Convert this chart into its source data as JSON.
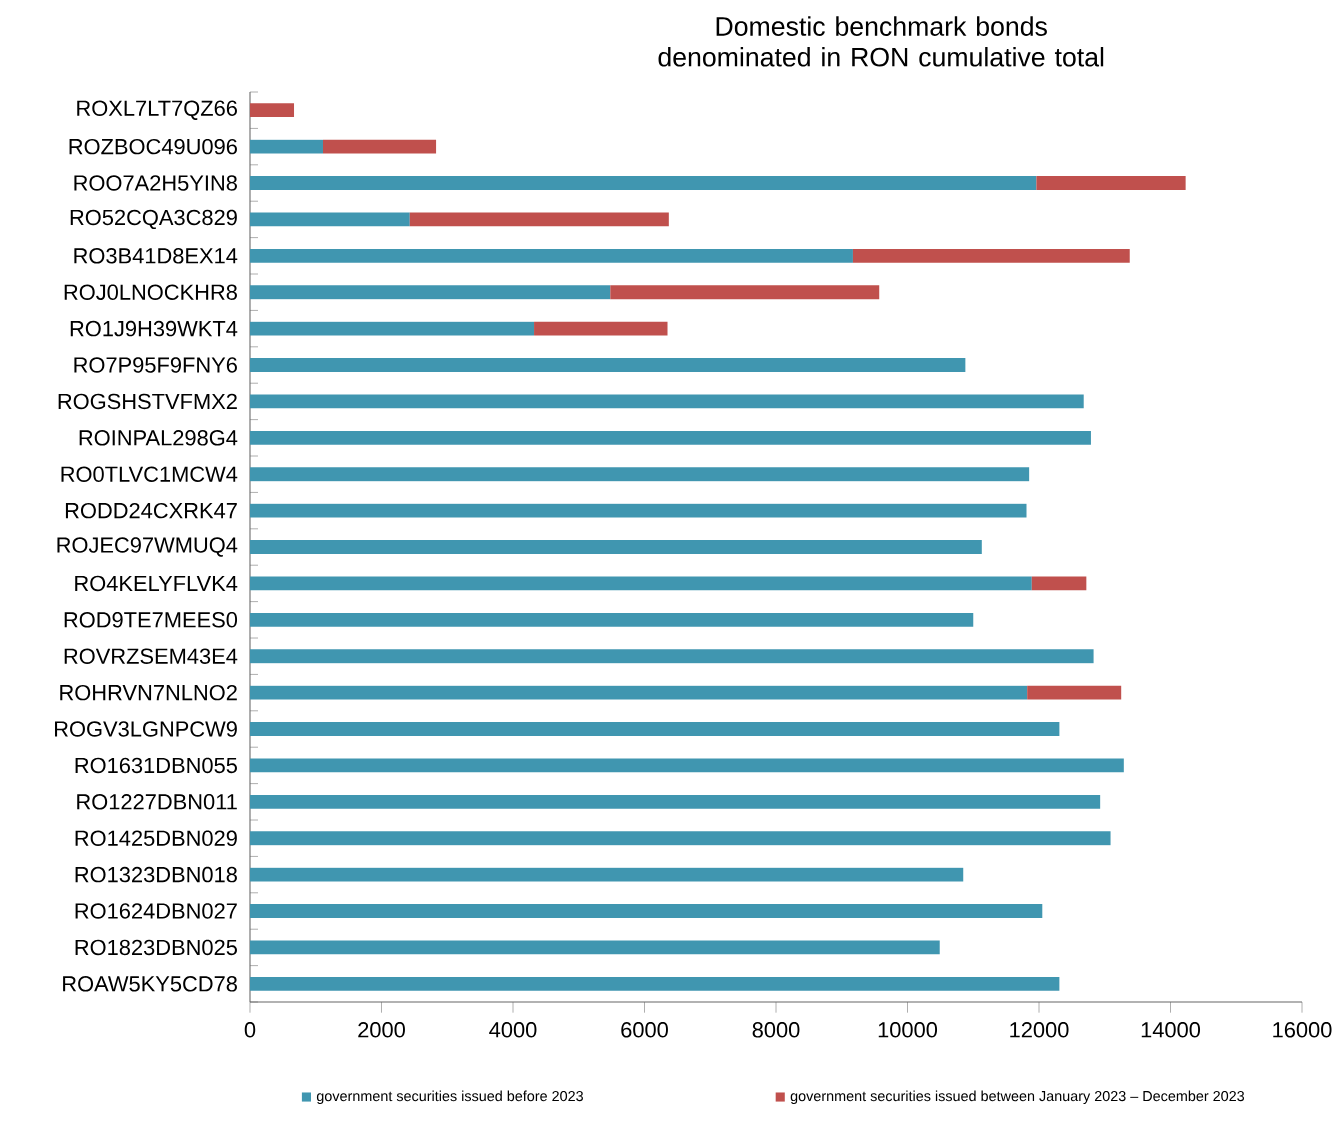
{
  "chart_data": {
    "type": "bar",
    "orientation": "horizontal",
    "stacked": true,
    "title": "Domestic benchmark bonds denominated in RON cumulative total",
    "categories": [
      "ROXL7LT7QZ66",
      "ROZBOC49U096",
      "ROO7A2H5YIN8",
      "RO52CQA3C829",
      "RO3B41D8EX14",
      "ROJ0LNOCKHR8",
      "RO1J9H39WKT4",
      "RO7P95F9FNY6",
      "ROGSHSTVFMX2",
      "ROINPAL298G4",
      "RO0TLVC1MCW4",
      "RODD24CXRK47",
      "ROJEC97WMUQ4",
      "RO4KELYFLVK4",
      "ROD9TE7MEES0",
      "ROVRZSEM43E4",
      "ROHRVN7NLNO2",
      "ROGV3LGNPCW9",
      "RO1631DBN055",
      "RO1227DBN011",
      "RO1425DBN029",
      "RO1323DBN018",
      "RO1624DBN027",
      "RO1823DBN025",
      "ROAW5KY5CD78"
    ],
    "series": [
      {
        "name": "government securities issued before 2023",
        "color": "#4096b0",
        "values": [
          null,
          1110,
          11960,
          2430,
          9170,
          5480,
          4320,
          10880,
          12680,
          12790,
          11850,
          11810,
          11130,
          11890,
          11000,
          12830,
          11820,
          12310,
          13290,
          12930,
          13090,
          10850,
          12050,
          10490,
          12310
        ]
      },
      {
        "name": "government securities issued between January 2023 – December 2023",
        "color": "#c0504d",
        "values": [
          670,
          1720,
          2270,
          3940,
          4210,
          4090,
          2030,
          null,
          null,
          null,
          null,
          null,
          null,
          830,
          null,
          null,
          1430,
          null,
          null,
          null,
          null,
          null,
          null,
          null,
          null
        ]
      }
    ],
    "xlim": [
      0,
      16000
    ],
    "xticks": [
      0,
      2000,
      4000,
      6000,
      8000,
      10000,
      12000,
      14000,
      16000
    ],
    "legend": "bottom",
    "grid": false
  }
}
